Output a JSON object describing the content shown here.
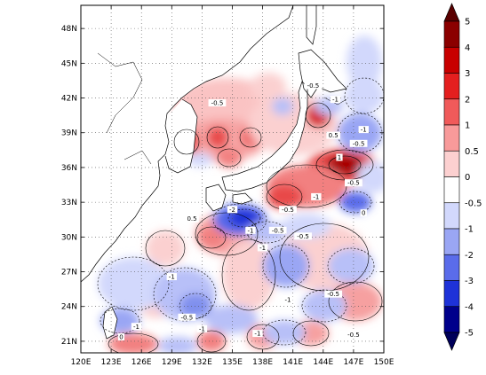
{
  "map": {
    "lon_ticks": [
      "120E",
      "123E",
      "126E",
      "129E",
      "132E",
      "135E",
      "138E",
      "141E",
      "144E",
      "147E",
      "150E"
    ],
    "lat_ticks": [
      "21N",
      "24N",
      "27N",
      "30N",
      "33N",
      "36N",
      "39N",
      "42N",
      "45N",
      "48N"
    ],
    "lon_range": [
      120,
      150
    ],
    "lat_range": [
      20,
      50
    ],
    "grid": true
  },
  "colorbar": {
    "levels": [
      "5",
      "4",
      "3",
      "2",
      "1",
      "0.5",
      "0",
      "-0.5",
      "-1",
      "-2",
      "-3",
      "-4",
      "-5"
    ],
    "colors": [
      "#8b0000",
      "#c80000",
      "#e41f1f",
      "#f05a5a",
      "#f89a9a",
      "#fcd0d0",
      "#ffffff",
      "#ffffff",
      "#d2d8fc",
      "#9aa6f4",
      "#5a6cea",
      "#1e32d8",
      "#00008b"
    ],
    "top_color": "#5a0000",
    "bottom_color": "#00005a"
  },
  "contour_labels": [
    {
      "text": "-0.5",
      "lon": 133.5,
      "lat": 41.5
    },
    {
      "text": "-0.5",
      "lon": 143.0,
      "lat": 43.0
    },
    {
      "text": "-1",
      "lon": 145.2,
      "lat": 41.8
    },
    {
      "text": "0.5",
      "lon": 145.0,
      "lat": 38.7
    },
    {
      "text": "-0.5",
      "lon": 147.5,
      "lat": 38.0
    },
    {
      "text": "-1",
      "lon": 148.0,
      "lat": 39.2
    },
    {
      "text": "1",
      "lon": 145.6,
      "lat": 36.8
    },
    {
      "text": "-0.5",
      "lon": 147.0,
      "lat": 34.6
    },
    {
      "text": "0",
      "lon": 148.0,
      "lat": 32.0
    },
    {
      "text": "-1",
      "lon": 143.3,
      "lat": 33.4
    },
    {
      "text": "-0.5",
      "lon": 140.5,
      "lat": 32.3
    },
    {
      "text": "-2",
      "lon": 135.0,
      "lat": 32.3
    },
    {
      "text": "-1",
      "lon": 136.8,
      "lat": 30.5
    },
    {
      "text": "-0.5",
      "lon": 139.5,
      "lat": 30.5
    },
    {
      "text": "-1",
      "lon": 138.0,
      "lat": 29.0
    },
    {
      "text": "0.5",
      "lon": 131.0,
      "lat": 31.5
    },
    {
      "text": "-0.5",
      "lon": 142.0,
      "lat": 30.0
    },
    {
      "text": "-1",
      "lon": 129.0,
      "lat": 26.5
    },
    {
      "text": "-1",
      "lon": 140.5,
      "lat": 24.5
    },
    {
      "text": "-0.5",
      "lon": 145.0,
      "lat": 25.0
    },
    {
      "text": "-0.5",
      "lon": 130.5,
      "lat": 23.0
    },
    {
      "text": "-1",
      "lon": 125.5,
      "lat": 22.2
    },
    {
      "text": "0",
      "lon": 124.0,
      "lat": 21.3
    },
    {
      "text": "-1",
      "lon": 132.0,
      "lat": 22.0
    },
    {
      "text": "-1",
      "lon": 137.5,
      "lat": 21.6
    },
    {
      "text": "-0.5",
      "lon": 147.0,
      "lat": 21.5
    }
  ]
}
